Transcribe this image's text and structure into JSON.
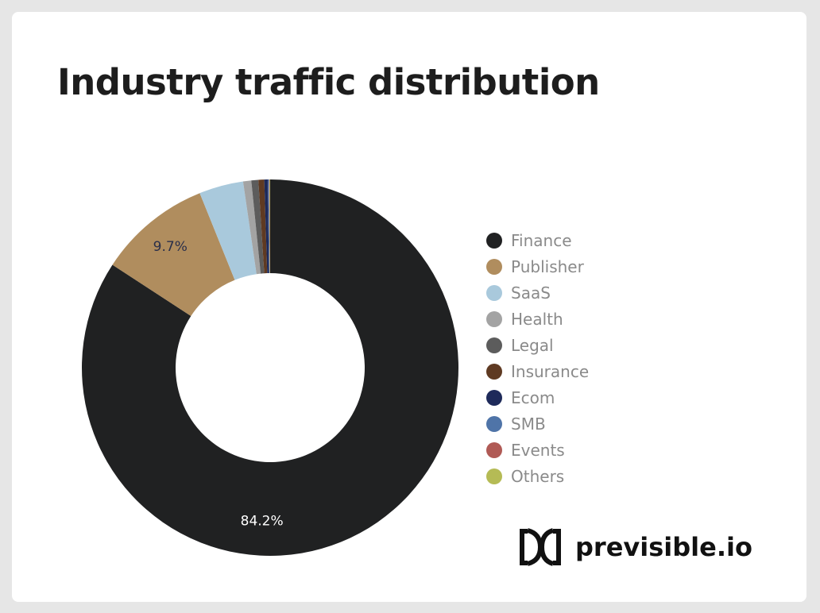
{
  "title": "Industry traffic distribution",
  "brand": "previsible.io",
  "chart_data": {
    "type": "pie",
    "donut": true,
    "title": "Industry traffic distribution",
    "legend_position": "right",
    "categories": [
      "Finance",
      "Publisher",
      "SaaS",
      "Health",
      "Legal",
      "Insurance",
      "Ecom",
      "SMB",
      "Events",
      "Others"
    ],
    "values": [
      84.2,
      9.7,
      3.8,
      0.7,
      0.6,
      0.5,
      0.3,
      0.1,
      0.05,
      0.05
    ],
    "colors": [
      "#202122",
      "#b08d5e",
      "#a9c9dc",
      "#a3a3a3",
      "#5c5c5c",
      "#5f3a22",
      "#1e2a5a",
      "#4f74a8",
      "#b05a55",
      "#b5bb55"
    ],
    "data_labels": [
      "84.2%",
      "9.7%",
      "",
      "",
      "",
      "",
      "",
      "",
      "",
      ""
    ]
  }
}
